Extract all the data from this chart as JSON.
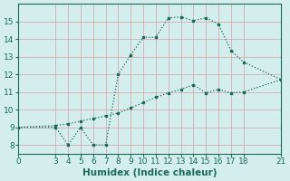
{
  "line1_x": [
    0,
    3,
    4,
    5,
    6,
    7,
    8,
    9,
    10,
    11,
    12,
    13,
    14,
    15,
    16,
    17,
    18,
    21
  ],
  "line1_y": [
    9.0,
    9.0,
    8.0,
    9.0,
    8.0,
    8.0,
    12.0,
    13.1,
    14.1,
    14.1,
    15.2,
    15.25,
    15.05,
    15.2,
    14.85,
    13.35,
    12.7,
    11.7
  ],
  "line2_x": [
    0,
    3,
    4,
    5,
    6,
    7,
    8,
    9,
    10,
    11,
    12,
    13,
    14,
    15,
    16,
    17,
    18,
    21
  ],
  "line2_y": [
    9.0,
    9.1,
    9.2,
    9.35,
    9.5,
    9.65,
    9.8,
    10.1,
    10.4,
    10.7,
    10.95,
    11.15,
    11.4,
    10.95,
    11.15,
    10.95,
    11.0,
    11.7
  ],
  "line_color": "#1a6b5a",
  "bg_color": "#d4eded",
  "grid_color": "#c0d8d8",
  "xlabel": "Humidex (Indice chaleur)",
  "xlim": [
    0,
    21
  ],
  "ylim": [
    7.5,
    16.0
  ],
  "xticks": [
    0,
    3,
    4,
    5,
    6,
    7,
    8,
    9,
    10,
    11,
    12,
    13,
    14,
    15,
    16,
    17,
    18,
    21
  ],
  "yticks": [
    8,
    9,
    10,
    11,
    12,
    13,
    14,
    15
  ],
  "tick_fontsize": 6.5,
  "xlabel_fontsize": 7.5
}
